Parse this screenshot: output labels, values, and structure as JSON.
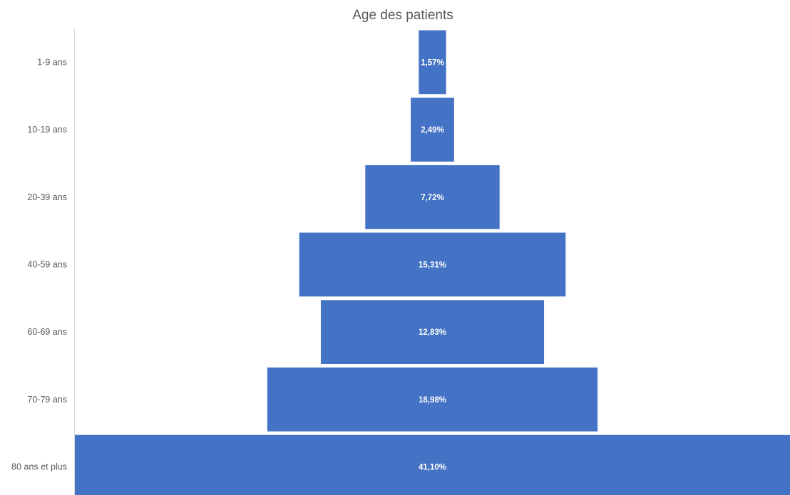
{
  "chart_data": {
    "type": "bar",
    "orientation": "horizontal",
    "layout": "centered-funnel",
    "title": "Age des patients",
    "xlabel": "",
    "ylabel": "",
    "categories": [
      "1-9 ans",
      "10-19 ans",
      "20-39 ans",
      "40-59 ans",
      "60-69 ans",
      "70-79 ans",
      "80 ans et plus"
    ],
    "values": [
      1.57,
      2.49,
      7.72,
      15.31,
      12.83,
      18.98,
      41.1
    ],
    "data_labels": [
      "1,57%",
      "2,49%",
      "7,72%",
      "15,31%",
      "12,83%",
      "18,98%",
      "41,10%"
    ],
    "unit": "%",
    "xlim": [
      0,
      41.1
    ],
    "grid": false,
    "legend": "none",
    "colors": {
      "bar": "#4472c4",
      "data_label": "#ffffff",
      "text": "#595959",
      "axis": "#d9d9d9"
    }
  }
}
